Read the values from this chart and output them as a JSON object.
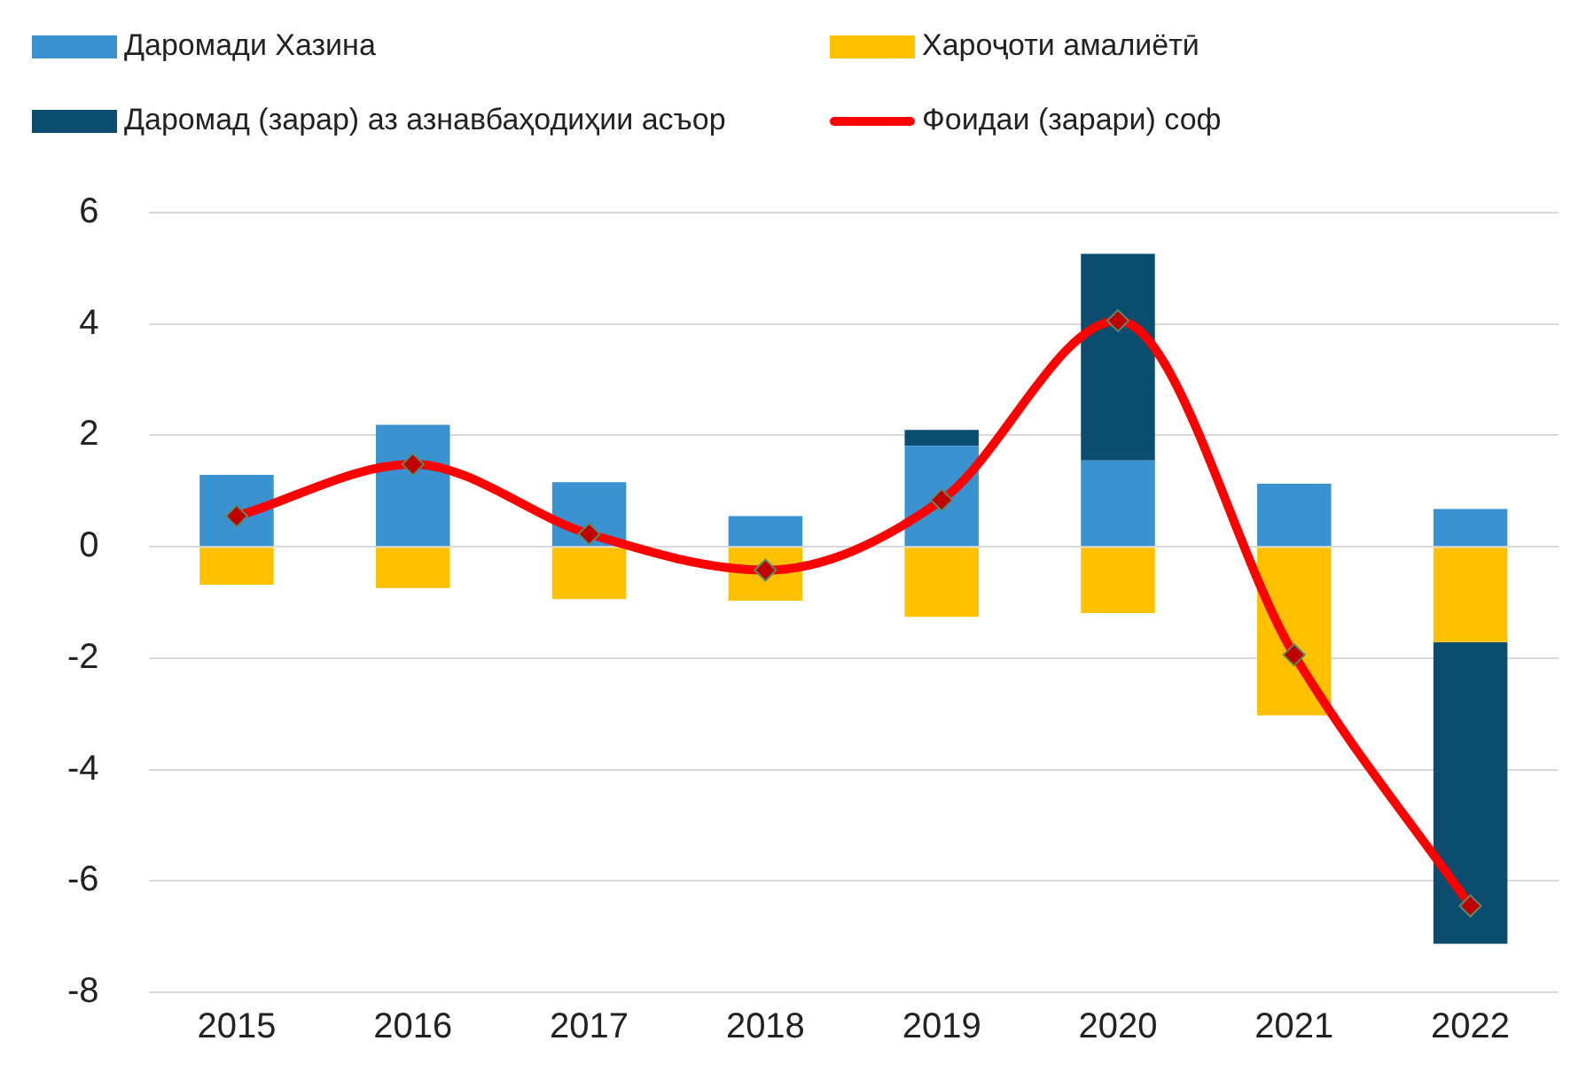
{
  "chart_data": {
    "type": "bar",
    "stacked": true,
    "categories": [
      "2015",
      "2016",
      "2017",
      "2018",
      "2019",
      "2020",
      "2021",
      "2022"
    ],
    "series": [
      {
        "name": "Даромади Хазина",
        "color": "#3a93d0",
        "values": [
          1.29,
          2.19,
          1.16,
          0.55,
          1.81,
          1.55,
          1.13,
          0.68
        ]
      },
      {
        "name": "Хароҷоти амалиётӣ",
        "color": "#ffc000",
        "values": [
          -0.68,
          -0.74,
          -0.94,
          -0.97,
          -1.26,
          -1.19,
          -3.03,
          -1.71
        ]
      },
      {
        "name": "Даромад (зарар) аз азнавбаҳодиҳии асъор",
        "color": "#0b4d6e",
        "values": [
          null,
          null,
          null,
          null,
          0.29,
          3.71,
          null,
          -5.42
        ]
      },
      {
        "name": "Фоидаи (зарари) соф",
        "type": "line",
        "color": "#ff0000",
        "values": [
          0.55,
          1.48,
          0.23,
          -0.42,
          0.84,
          4.06,
          -1.94,
          -6.45
        ]
      }
    ],
    "ylim": [
      -8,
      6
    ],
    "yticks": [
      -8,
      -6,
      -4,
      -2,
      0,
      2,
      4,
      6
    ],
    "grid": "y",
    "legend": "top",
    "marker": "diamond"
  }
}
